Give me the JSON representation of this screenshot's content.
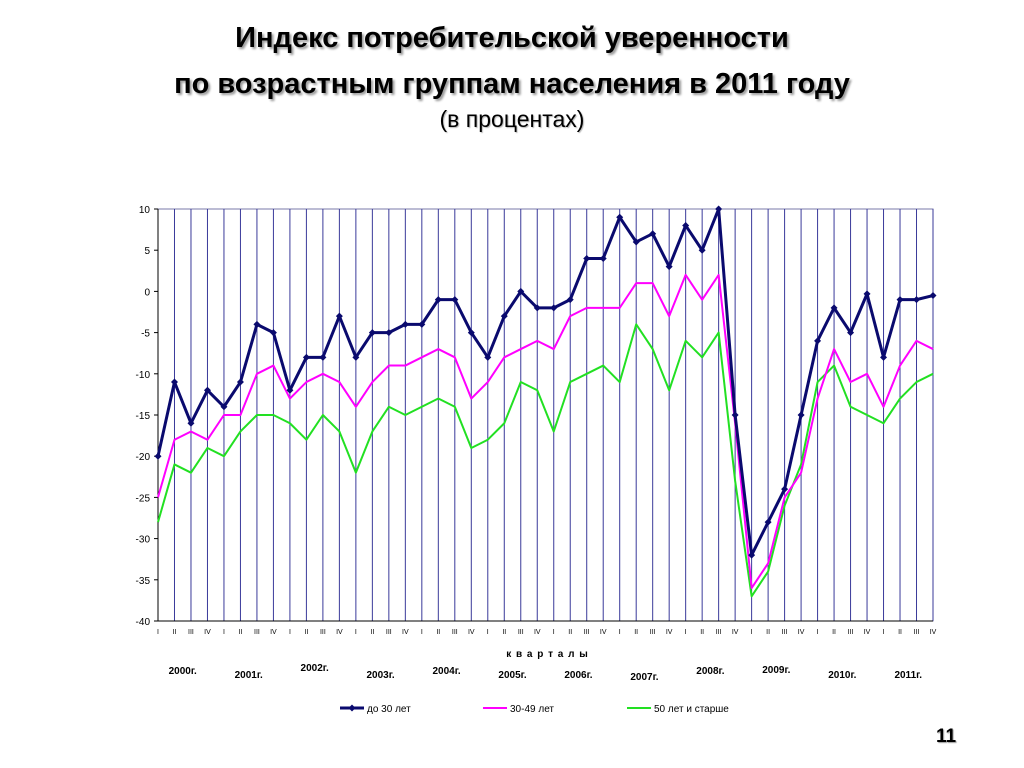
{
  "title": {
    "line1": "Индекс потребительской уверенности",
    "line2": "по возрастным группам населения  в 2011 году",
    "line3": "(в процентах)"
  },
  "slide_number": "11",
  "chart_data": {
    "type": "line",
    "title": "Индекс потребительской уверенности по возрастным группам населения в 2011 году",
    "subtitle": "(в процентах)",
    "xlabel": "к в а р т а л ы",
    "ylabel": "",
    "ylim": [
      -40,
      10
    ],
    "yticks": [
      10,
      5,
      0,
      -5,
      -10,
      -15,
      -20,
      -25,
      -30,
      -35,
      -40
    ],
    "grid": "vertical",
    "legend": "bottom",
    "quarter_labels": [
      "I",
      "II",
      "III",
      "IV",
      "I",
      "II",
      "III",
      "IV",
      "I",
      "II",
      "III",
      "IV",
      "I",
      "II",
      "III",
      "IV",
      "I",
      "II",
      "III",
      "IV",
      "I",
      "II",
      "III",
      "IV",
      "I",
      "II",
      "III",
      "IV",
      "I",
      "II",
      "III",
      "IV",
      "I",
      "II",
      "III",
      "IV",
      "I",
      "II",
      "III",
      "IV",
      "I",
      "II",
      "III",
      "IV",
      "I",
      "II",
      "III",
      "IV"
    ],
    "year_labels": [
      "2000г.",
      "2001г.",
      "2002г.",
      "2003г.",
      "2004г.",
      "2005г.",
      "2006г.",
      "2007г.",
      "2008г.",
      "2009г.",
      "2010г.",
      "2011г."
    ],
    "series": [
      {
        "name": "до 30 лет",
        "color": "#0a0a6e",
        "marker": "diamond",
        "values": [
          -20,
          -11,
          -16,
          -12,
          -14,
          -11,
          -4,
          -5,
          -12,
          -8,
          -8,
          -3,
          -8,
          -5,
          -5,
          -4,
          -4,
          -1,
          -1,
          -5,
          -8,
          -3,
          0,
          -2,
          -2,
          -1,
          4,
          4,
          9,
          6,
          7,
          3,
          8,
          5,
          10,
          -15,
          -32,
          -28,
          -24,
          -15,
          -6,
          -2,
          -5,
          -0.3,
          -8,
          -1,
          -1,
          -0.5
        ]
      },
      {
        "name": "30-49 лет",
        "color": "#ff00ff",
        "marker": "none",
        "values": [
          -25,
          -18,
          -17,
          -18,
          -15,
          -15,
          -10,
          -9,
          -13,
          -11,
          -10,
          -11,
          -14,
          -11,
          -9,
          -9,
          -8,
          -7,
          -8,
          -13,
          -11,
          -8,
          -7,
          -6,
          -7,
          -3,
          -2,
          -2,
          -2,
          1,
          1,
          -3,
          2,
          -1,
          2,
          -16,
          -36,
          -33,
          -25,
          -22,
          -13,
          -7,
          -11,
          -10,
          -14,
          -9,
          -6,
          -7
        ]
      },
      {
        "name": "50 лет  и старше",
        "color": "#22e022",
        "marker": "none",
        "values": [
          -28,
          -21,
          -22,
          -19,
          -20,
          -17,
          -15,
          -15,
          -16,
          -18,
          -15,
          -17,
          -22,
          -17,
          -14,
          -15,
          -14,
          -13,
          -14,
          -19,
          -18,
          -16,
          -11,
          -12,
          -17,
          -11,
          -10,
          -9,
          -11,
          -4,
          -7,
          -12,
          -6,
          -8,
          -5,
          -23,
          -37,
          -34,
          -26,
          -21,
          -11,
          -9,
          -14,
          -15,
          -16,
          -13,
          -11,
          -10
        ]
      }
    ]
  }
}
